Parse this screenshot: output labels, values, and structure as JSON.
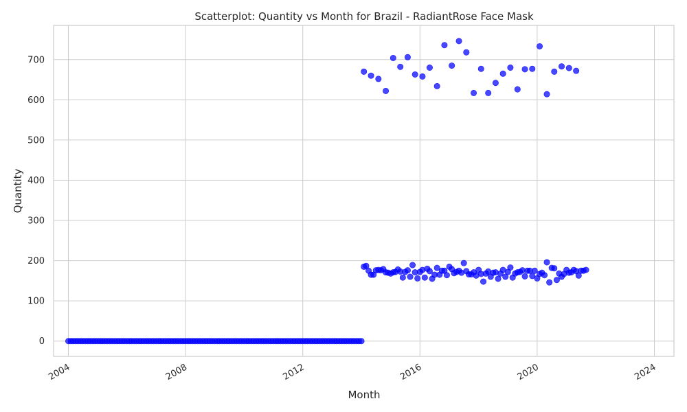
{
  "chart_data": {
    "type": "scatter",
    "title": "Scatterplot: Quantity vs Month for Brazil - RadiantRose Face Mask",
    "xlabel": "Month",
    "ylabel": "Quantity",
    "x_range": [
      "2003-07-01",
      "2024-09-01"
    ],
    "ylim": [
      -38,
      785
    ],
    "x_ticks": [
      "2004",
      "2008",
      "2012",
      "2016",
      "2020",
      "2024"
    ],
    "y_ticks": [
      0,
      100,
      200,
      300,
      400,
      500,
      600,
      700
    ],
    "grid": true,
    "marker_color": "#0000ff",
    "series": [
      {
        "zero_months": {
          "start": "2004-01",
          "end": "2014-01",
          "value": 0
        },
        "low_points": [
          [
            "2014-02",
            185
          ],
          [
            "2014-03",
            187
          ],
          [
            "2014-04",
            175
          ],
          [
            "2014-05",
            165
          ],
          [
            "2014-06",
            165
          ],
          [
            "2014-07",
            176
          ],
          [
            "2014-08",
            177
          ],
          [
            "2014-09",
            176
          ],
          [
            "2014-10",
            179
          ],
          [
            "2014-11",
            171
          ],
          [
            "2014-12",
            170
          ],
          [
            "2015-01",
            168
          ],
          [
            "2015-02",
            171
          ],
          [
            "2015-03",
            172
          ],
          [
            "2015-04",
            178
          ],
          [
            "2015-05",
            173
          ],
          [
            "2015-06",
            158
          ],
          [
            "2015-07",
            172
          ],
          [
            "2015-08",
            176
          ],
          [
            "2015-09",
            160
          ],
          [
            "2015-10",
            189
          ],
          [
            "2015-11",
            171
          ],
          [
            "2015-12",
            156
          ],
          [
            "2016-01",
            172
          ],
          [
            "2016-02",
            177
          ],
          [
            "2016-03",
            158
          ],
          [
            "2016-04",
            180
          ],
          [
            "2016-05",
            174
          ],
          [
            "2016-06",
            155
          ],
          [
            "2016-07",
            165
          ],
          [
            "2016-08",
            182
          ],
          [
            "2016-09",
            165
          ],
          [
            "2016-10",
            175
          ],
          [
            "2016-11",
            175
          ],
          [
            "2016-12",
            164
          ],
          [
            "2017-01",
            185
          ],
          [
            "2017-02",
            179
          ],
          [
            "2017-03",
            169
          ],
          [
            "2017-04",
            172
          ],
          [
            "2017-05",
            175
          ],
          [
            "2017-06",
            170
          ],
          [
            "2017-07",
            194
          ],
          [
            "2017-08",
            174
          ],
          [
            "2017-09",
            166
          ],
          [
            "2017-10",
            166
          ],
          [
            "2017-11",
            171
          ],
          [
            "2017-12",
            163
          ],
          [
            "2018-01",
            177
          ],
          [
            "2018-02",
            167
          ],
          [
            "2018-03",
            148
          ],
          [
            "2018-04",
            168
          ],
          [
            "2018-05",
            173
          ],
          [
            "2018-06",
            160
          ],
          [
            "2018-07",
            170
          ],
          [
            "2018-08",
            171
          ],
          [
            "2018-09",
            155
          ],
          [
            "2018-10",
            168
          ],
          [
            "2018-11",
            177
          ],
          [
            "2018-12",
            160
          ],
          [
            "2019-01",
            172
          ],
          [
            "2019-02",
            183
          ],
          [
            "2019-03",
            158
          ],
          [
            "2019-04",
            168
          ],
          [
            "2019-05",
            171
          ],
          [
            "2019-06",
            172
          ],
          [
            "2019-07",
            176
          ],
          [
            "2019-08",
            161
          ],
          [
            "2019-09",
            175
          ],
          [
            "2019-10",
            175
          ],
          [
            "2019-11",
            162
          ],
          [
            "2019-12",
            175
          ],
          [
            "2020-01",
            156
          ],
          [
            "2020-02",
            167
          ],
          [
            "2020-03",
            170
          ],
          [
            "2020-04",
            164
          ],
          [
            "2020-05",
            196
          ],
          [
            "2020-06",
            146
          ],
          [
            "2020-07",
            182
          ],
          [
            "2020-08",
            181
          ],
          [
            "2020-09",
            152
          ],
          [
            "2020-10",
            168
          ],
          [
            "2020-11",
            160
          ],
          [
            "2020-12",
            167
          ],
          [
            "2021-01",
            177
          ],
          [
            "2021-02",
            170
          ],
          [
            "2021-03",
            171
          ],
          [
            "2021-04",
            177
          ],
          [
            "2021-05",
            174
          ],
          [
            "2021-06",
            163
          ],
          [
            "2021-07",
            175
          ],
          [
            "2021-08",
            175
          ],
          [
            "2021-09",
            177
          ]
        ],
        "high_points": [
          [
            "2014-02",
            670
          ],
          [
            "2014-05",
            660
          ],
          [
            "2014-08",
            652
          ],
          [
            "2014-11",
            622
          ],
          [
            "2015-02",
            704
          ],
          [
            "2015-05",
            682
          ],
          [
            "2015-08",
            706
          ],
          [
            "2015-11",
            663
          ],
          [
            "2016-02",
            658
          ],
          [
            "2016-05",
            680
          ],
          [
            "2016-08",
            634
          ],
          [
            "2016-11",
            736
          ],
          [
            "2017-02",
            685
          ],
          [
            "2017-05",
            746
          ],
          [
            "2017-08",
            718
          ],
          [
            "2017-11",
            617
          ],
          [
            "2018-02",
            677
          ],
          [
            "2018-05",
            617
          ],
          [
            "2018-08",
            642
          ],
          [
            "2018-11",
            665
          ],
          [
            "2019-02",
            680
          ],
          [
            "2019-05",
            626
          ],
          [
            "2019-08",
            676
          ],
          [
            "2019-11",
            677
          ],
          [
            "2020-02",
            733
          ],
          [
            "2020-05",
            614
          ],
          [
            "2020-08",
            670
          ],
          [
            "2020-11",
            683
          ],
          [
            "2021-02",
            679
          ],
          [
            "2021-05",
            672
          ]
        ]
      }
    ]
  }
}
